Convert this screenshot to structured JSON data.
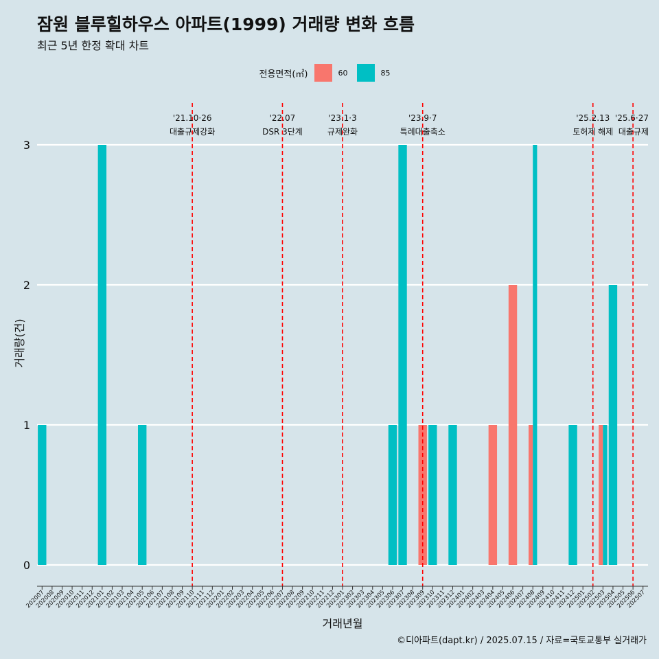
{
  "title": "잠원 블루힐하우스 아파트(1999) 거래량 변화 흐름",
  "subtitle": "최근 5년 한정 확대 차트",
  "caption": "©디아파트(dapt.kr) / 2025.07.15 / 자료=국토교통부 실거래가",
  "legend": {
    "title": "전용면적(㎡)",
    "items": [
      {
        "label": "60",
        "color": "#f8766d"
      },
      {
        "label": "85",
        "color": "#00bfc4"
      }
    ]
  },
  "chart_data": {
    "type": "bar",
    "xlabel": "거래년월",
    "ylabel": "거래량(건)",
    "ylim": [
      0,
      3
    ],
    "yticks": [
      0,
      1,
      2,
      3
    ],
    "categories": [
      "202007",
      "202008",
      "202009",
      "202010",
      "202011",
      "202012",
      "202101",
      "202102",
      "202103",
      "202104",
      "202105",
      "202106",
      "202107",
      "202108",
      "202109",
      "202110",
      "202111",
      "202112",
      "202201",
      "202202",
      "202203",
      "202204",
      "202205",
      "202206",
      "202207",
      "202208",
      "202209",
      "202210",
      "202211",
      "202212",
      "202301",
      "202302",
      "202303",
      "202304",
      "202305",
      "202306",
      "202307",
      "202308",
      "202309",
      "202310",
      "202311",
      "202312",
      "202401",
      "202402",
      "202403",
      "202404",
      "202405",
      "202406",
      "202407",
      "202408",
      "202409",
      "202410",
      "202411",
      "202412",
      "202501",
      "202502",
      "202503",
      "202504",
      "202505",
      "202506",
      "202507"
    ],
    "series": [
      {
        "name": "60",
        "color": "#f8766d",
        "points": [
          {
            "x": "202309",
            "y": 1
          },
          {
            "x": "202404",
            "y": 1
          },
          {
            "x": "202406",
            "y": 2
          },
          {
            "x": "202408",
            "y": 1
          },
          {
            "x": "202503",
            "y": 1
          }
        ]
      },
      {
        "name": "85",
        "color": "#00bfc4",
        "points": [
          {
            "x": "202007",
            "y": 1
          },
          {
            "x": "202101",
            "y": 3
          },
          {
            "x": "202105",
            "y": 1
          },
          {
            "x": "202306",
            "y": 1
          },
          {
            "x": "202307",
            "y": 3
          },
          {
            "x": "202310",
            "y": 1
          },
          {
            "x": "202312",
            "y": 1
          },
          {
            "x": "202408",
            "y": 3
          },
          {
            "x": "202412",
            "y": 1
          },
          {
            "x": "202503",
            "y": 1
          },
          {
            "x": "202504",
            "y": 2
          }
        ]
      }
    ],
    "annotations": [
      {
        "x": "202110",
        "date": "'21.10·26",
        "label": "대출규제강화"
      },
      {
        "x": "202207",
        "date": "'22.07",
        "label": "DSR 3단계"
      },
      {
        "x": "202301",
        "date": "'23.1·3",
        "label": "규제완화"
      },
      {
        "x": "202309",
        "date": "'23.9·7",
        "label": "특례대출축소"
      },
      {
        "x": "202502",
        "date": "'25.2.13",
        "label": "토허제 해제"
      },
      {
        "x": "202506",
        "date": "'25.6·27",
        "label": "대출규제"
      }
    ],
    "annotation_color": "#ff0000",
    "grid": true
  }
}
